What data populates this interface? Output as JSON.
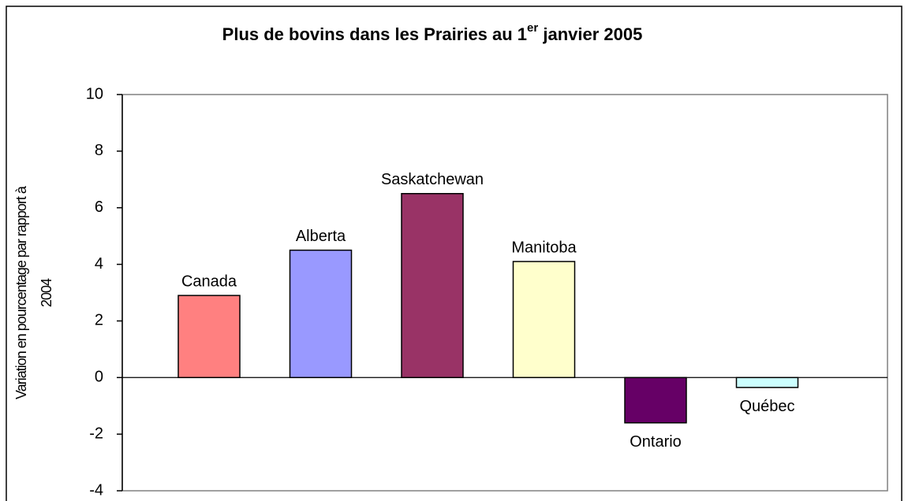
{
  "chart_data": {
    "type": "bar",
    "title": {
      "text": "Plus de bovins dans les Prairies au 1",
      "superscript": "er",
      "rest": " janvier 2005"
    },
    "ylabel": [
      "Variation en pourcentage par rapport à",
      "2004"
    ],
    "categories": [
      "Canada",
      "Alberta",
      "Saskatchewan",
      "Manitoba",
      "Ontario",
      "Québec"
    ],
    "values": [
      2.9,
      4.5,
      6.5,
      4.1,
      -1.6,
      -0.35
    ],
    "colors": [
      "#ff8080",
      "#9999ff",
      "#993366",
      "#ffffcc",
      "#660066",
      "#ccffff"
    ],
    "ylim": [
      -4,
      10
    ],
    "yticks": [
      -4,
      -2,
      0,
      2,
      4,
      6,
      8,
      10
    ],
    "grid": false
  }
}
